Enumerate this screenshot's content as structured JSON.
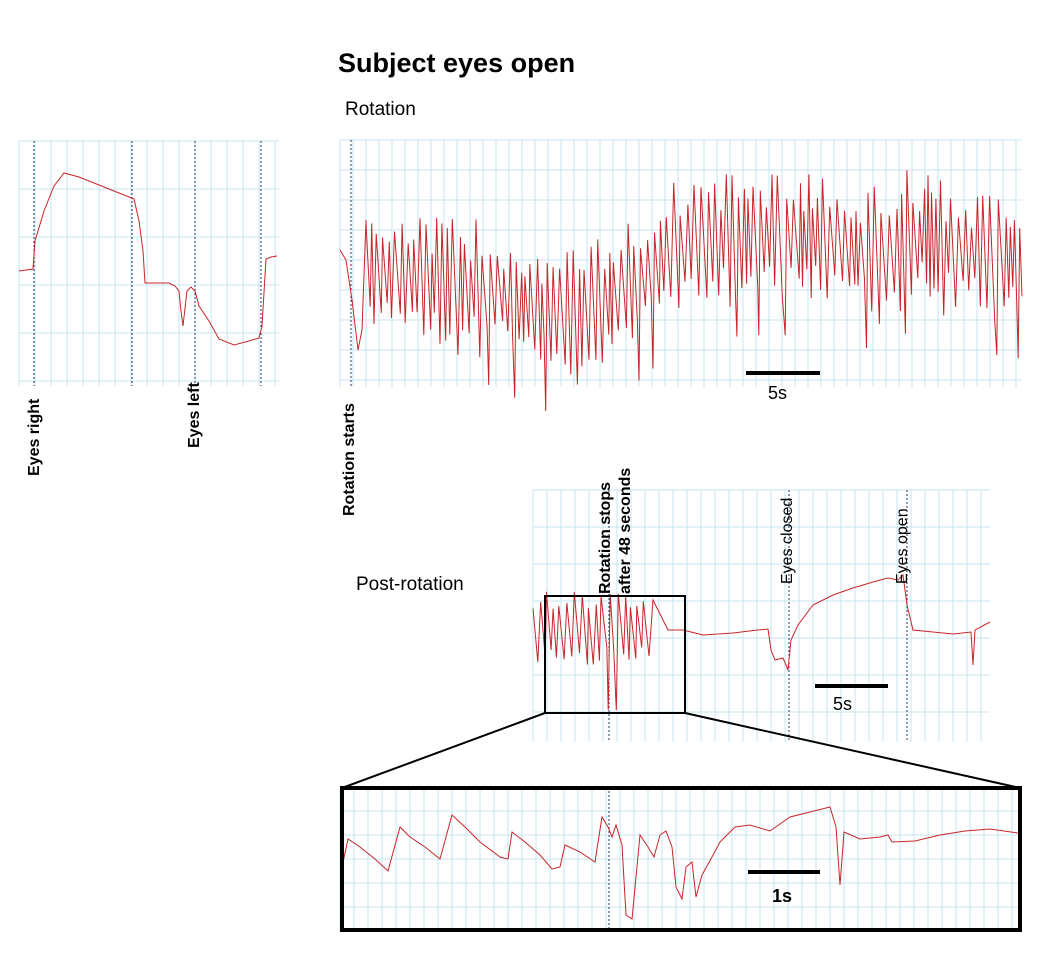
{
  "figure": {
    "title": "Subject eyes open",
    "rotation_label": "Rotation",
    "post_rotation_label": "Post-rotation",
    "markers": {
      "eyes_right": "Eyes right",
      "eyes_left": "Eyes left",
      "rotation_starts": "Rotation starts",
      "rotation_stops_line1": "Rotation stops",
      "rotation_stops_line2": "after 48 seconds",
      "eyes_closed": "Eyes closed",
      "eyes_open": "Eyes open"
    },
    "scale_bars": {
      "rotation": "5s",
      "post_rotation": "5s",
      "zoom": "1s"
    }
  },
  "colors": {
    "trace": "#c8252a",
    "grid": "#c6e6f2",
    "marker": "#1f3a6a",
    "frame": "#000000"
  }
}
